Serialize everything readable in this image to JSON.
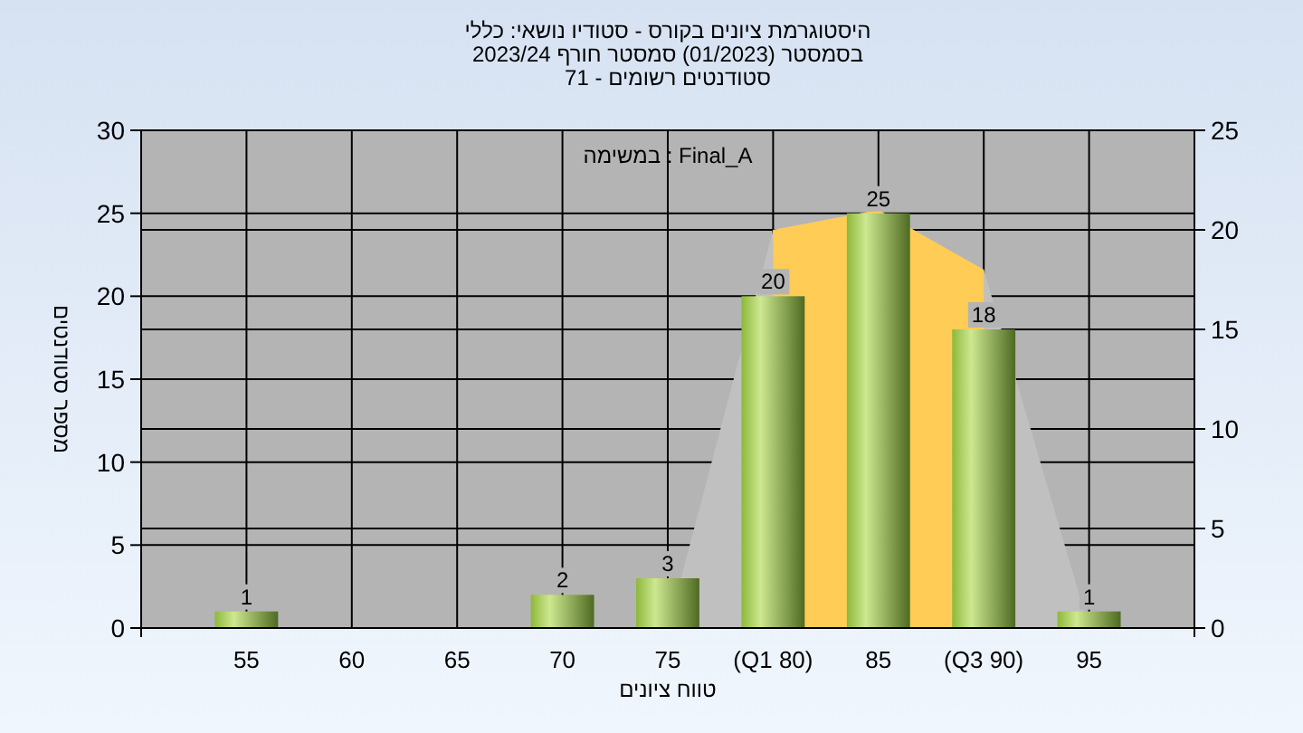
{
  "chart_data": {
    "type": "bar",
    "title": "היסטוגרמת ציונים בקורס - סטודיו נושאי: כללי",
    "subtitle": "בסמסטר (01/2023) סמסטר חורף 2023/24",
    "xlabel": "טווח ציונים",
    "ylabel": "מספר סטודנטים",
    "annotations": [
      "סטודנטים רשומים - 71",
      "במשימה : Final_A"
    ],
    "categories": [
      "55",
      "60",
      "65",
      "70",
      "75",
      "(Q1 80)",
      "85",
      "(Q3 90)",
      "95"
    ],
    "series": [
      {
        "type": "area",
        "axis": "y2",
        "color": "#c0c0c0",
        "values": [
          null,
          null,
          null,
          null,
          0,
          20,
          21,
          18,
          0
        ]
      },
      {
        "type": "area",
        "axis": "y2",
        "color": "#ffcc55",
        "values": [
          null,
          null,
          null,
          null,
          null,
          20,
          21,
          18,
          null
        ]
      },
      {
        "color": "#8db83a",
        "values": [
          1,
          0,
          0,
          2,
          3,
          20,
          25,
          18,
          1
        ],
        "value_labels": [
          "1",
          null,
          null,
          "2",
          "3",
          "20",
          "25",
          "18",
          "1"
        ]
      }
    ],
    "ylim": [
      0,
      30
    ],
    "yticks": [
      0,
      5,
      10,
      15,
      20,
      25,
      30
    ],
    "y2lim": [
      0,
      25
    ],
    "y2ticks": [
      0,
      5,
      10,
      15,
      20,
      25
    ],
    "grid": true,
    "legend": false
  }
}
